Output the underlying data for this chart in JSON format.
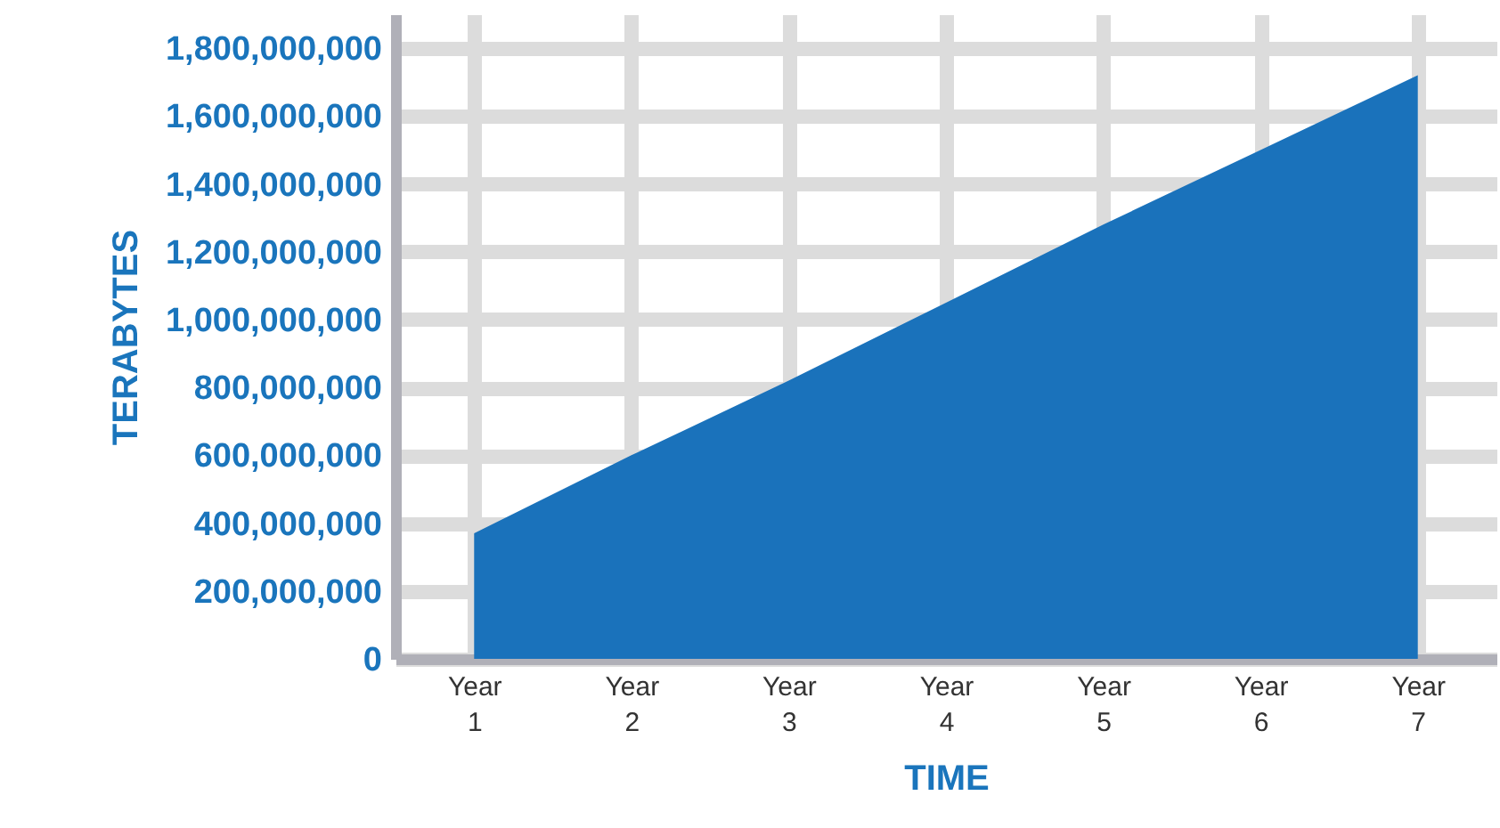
{
  "chart_data": {
    "type": "area",
    "xlabel": "TIME",
    "ylabel": "TERABYTES",
    "categories": [
      "Year 1",
      "Year 2",
      "Year 3",
      "Year 4",
      "Year 5",
      "Year 6",
      "Year 7"
    ],
    "ylim": [
      0,
      1900000000
    ],
    "yticks": [
      0,
      {
        "value": 200000000,
        "label": "200,000,000"
      },
      {
        "value": 400000000,
        "label": "400,000,000"
      },
      {
        "value": 600000000,
        "label": "600,000,000"
      },
      {
        "value": 800000000,
        "label": "800,000,000"
      },
      {
        "value": 1000000000,
        "label": "1,000,000,000"
      },
      {
        "value": 1200000000,
        "label": "1,200,000,000"
      },
      {
        "value": 1400000000,
        "label": "1,400,000,000"
      },
      {
        "value": 1600000000,
        "label": "1,600,000,000"
      },
      {
        "value": 1800000000,
        "label": "1,800,000,000"
      }
    ],
    "grid": true,
    "series": [
      {
        "color": "#1a72bb",
        "values": [
          370000000,
          600000000,
          820000000,
          1050000000,
          1280000000,
          1500000000,
          1720000000
        ]
      }
    ]
  }
}
